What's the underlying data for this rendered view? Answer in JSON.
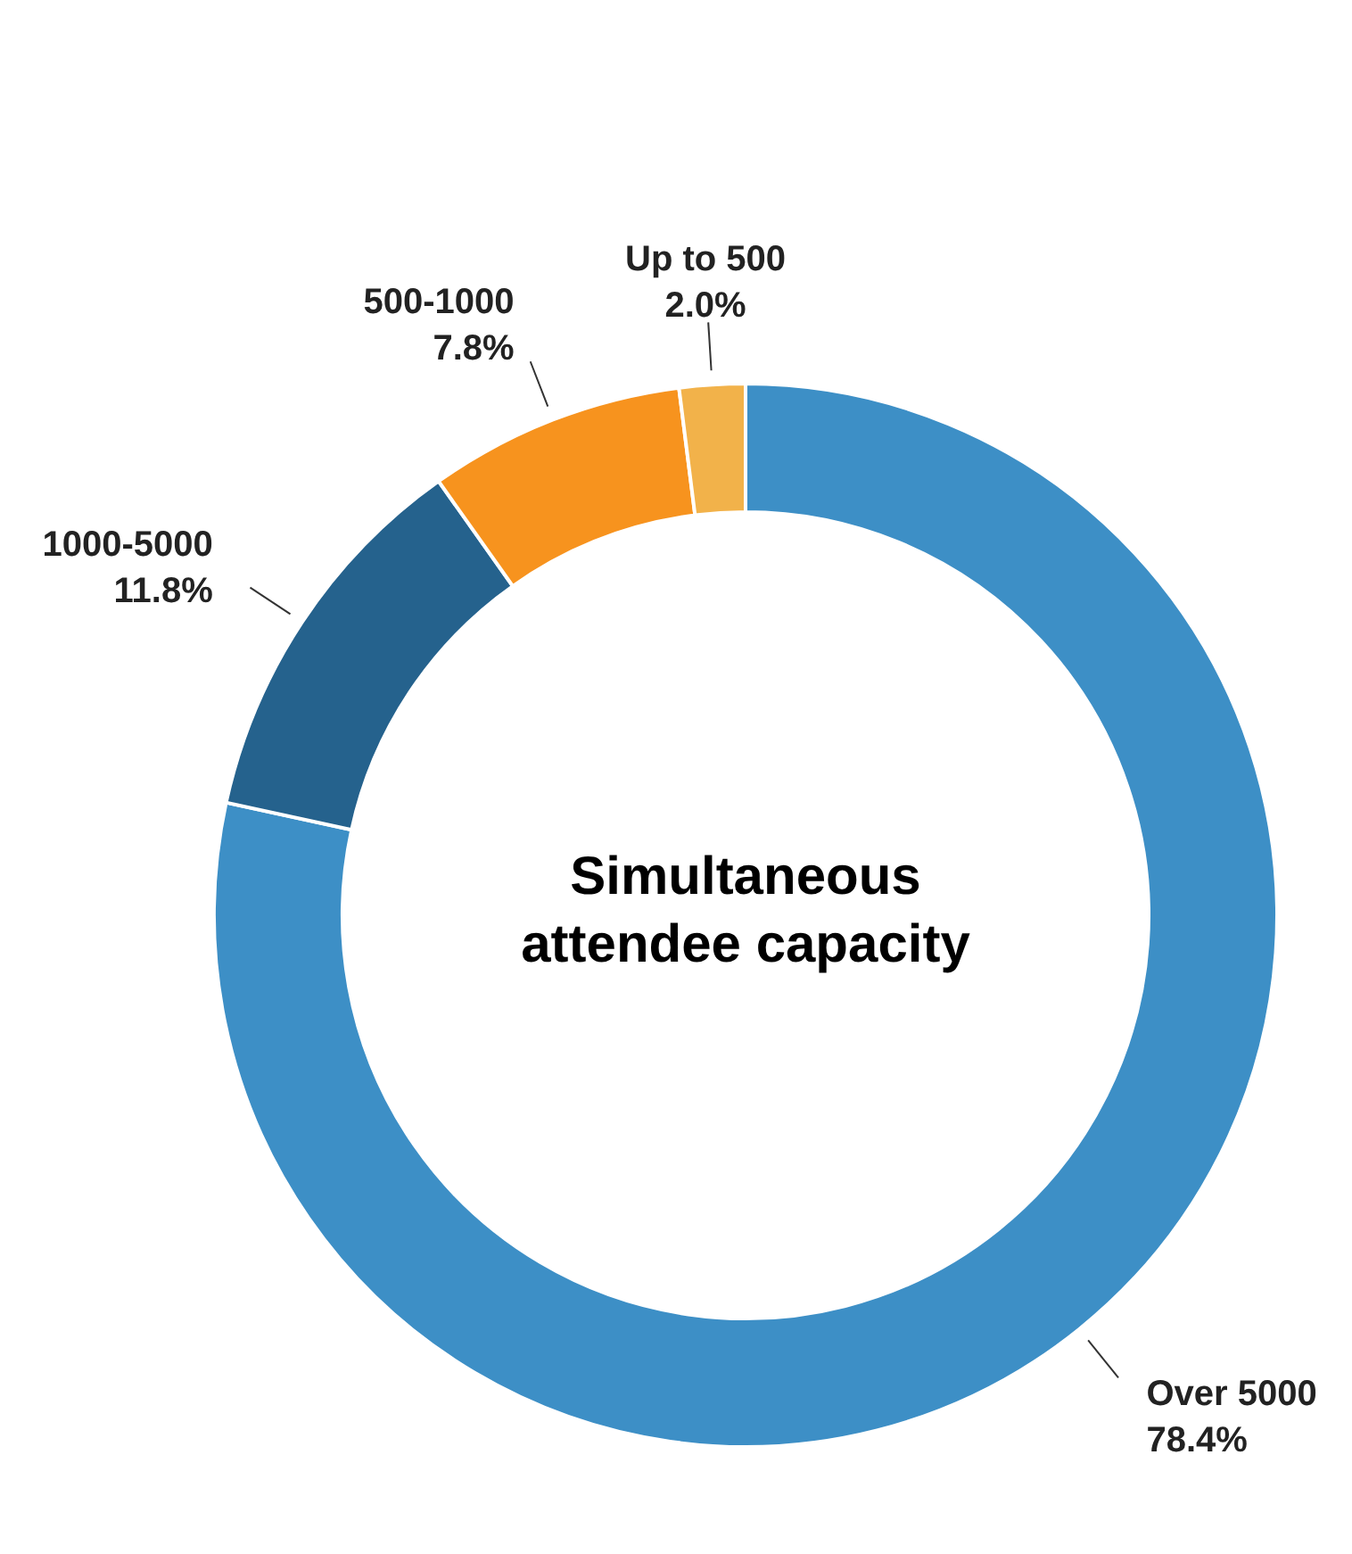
{
  "chart_data": {
    "type": "donut",
    "title": "Simultaneous attendee capacity",
    "categories": [
      "Over 5000",
      "1000-5000",
      "500-1000",
      "Up to 500"
    ],
    "values": [
      78.4,
      11.8,
      7.8,
      2.0
    ],
    "value_labels": [
      "78.4%",
      "11.8%",
      "7.8%",
      "2.0%"
    ],
    "colors": [
      "#3d8fc6",
      "#25628d",
      "#f7931e",
      "#f2b24a"
    ]
  }
}
